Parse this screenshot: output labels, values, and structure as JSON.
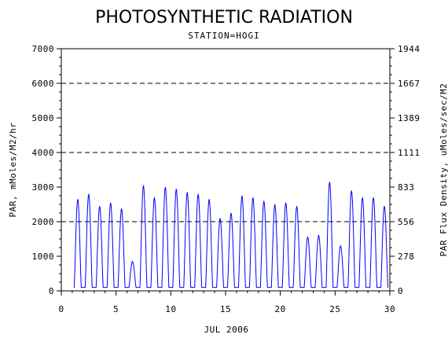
{
  "chart_data": {
    "type": "line",
    "title": "PHOTOSYNTHETIC RADIATION",
    "subtitle": "STATION=HOGI",
    "xlabel": "JUL 2006",
    "ylabel": "PAR, mMoles/M2/hr",
    "ylabel_right": "PAR Flux Density, uMoles/sec/M2",
    "xlim": [
      0,
      30
    ],
    "ylim": [
      0,
      7000
    ],
    "x_ticks": [
      "0",
      "5",
      "10",
      "15",
      "20",
      "25",
      "30"
    ],
    "y_ticks": [
      "0",
      "1000",
      "2000",
      "3000",
      "4000",
      "5000",
      "6000",
      "7000"
    ],
    "y_ticks_right": [
      "0",
      "278",
      "556",
      "833",
      "1111",
      "1389",
      "1667",
      "1944"
    ],
    "reference_lines": [
      2000,
      4000,
      6000
    ],
    "line_color": "#0000ff",
    "series": [
      {
        "daily_peaks": [
          {
            "day": 1,
            "peak": 2650
          },
          {
            "day": 2,
            "peak": 2800
          },
          {
            "day": 3,
            "peak": 2450
          },
          {
            "day": 4,
            "peak": 2550
          },
          {
            "day": 5,
            "peak": 2380
          },
          {
            "day": 6,
            "peak": 850
          },
          {
            "day": 7,
            "peak": 3050
          },
          {
            "day": 8,
            "peak": 2700
          },
          {
            "day": 9,
            "peak": 3000
          },
          {
            "day": 10,
            "peak": 2950
          },
          {
            "day": 11,
            "peak": 2850
          },
          {
            "day": 12,
            "peak": 2800
          },
          {
            "day": 13,
            "peak": 2650
          },
          {
            "day": 14,
            "peak": 2100
          },
          {
            "day": 15,
            "peak": 2250
          },
          {
            "day": 16,
            "peak": 2750
          },
          {
            "day": 17,
            "peak": 2700
          },
          {
            "day": 18,
            "peak": 2600
          },
          {
            "day": 19,
            "peak": 2500
          },
          {
            "day": 20,
            "peak": 2550
          },
          {
            "day": 21,
            "peak": 2450
          },
          {
            "day": 22,
            "peak": 1550
          },
          {
            "day": 23,
            "peak": 1600
          },
          {
            "day": 24,
            "peak": 3150
          },
          {
            "day": 25,
            "peak": 1300
          },
          {
            "day": 26,
            "peak": 2900
          },
          {
            "day": 27,
            "peak": 2700
          },
          {
            "day": 28,
            "peak": 2700
          },
          {
            "day": 29,
            "peak": 2450
          }
        ],
        "night_value": 100
      }
    ]
  }
}
